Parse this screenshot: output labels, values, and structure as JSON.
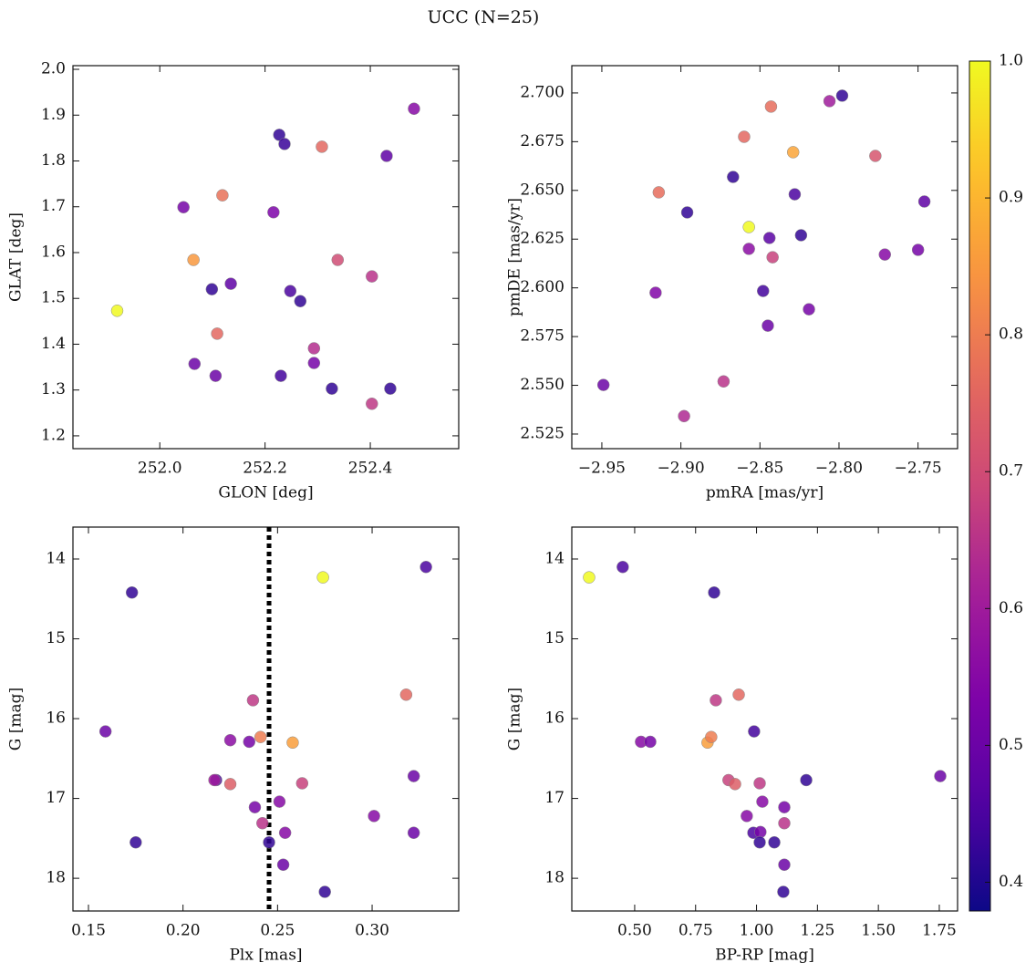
{
  "title": "UCC (N=25)",
  "colorbar": {
    "cmap": "plasma",
    "clim": [
      0.379,
      1.0
    ],
    "ticks": [
      0.4,
      0.5,
      0.6,
      0.7,
      0.8,
      0.9,
      {
        "value": 1.0,
        "label": "1.0"
      }
    ]
  },
  "chart_data": [
    {
      "type": "scatter",
      "xlabel": "GLON [deg]",
      "ylabel": "GLAT [deg]",
      "xlim": [
        251.835,
        252.568
      ],
      "ylim": [
        1.172,
        2.008
      ],
      "xticks": [
        {
          "value": 252.0,
          "label": "252.0"
        },
        {
          "value": 252.2,
          "label": "252.2"
        },
        {
          "value": 252.4,
          "label": "252.4"
        }
      ],
      "yticks": [
        1.2,
        1.3,
        1.4,
        1.5,
        1.6,
        1.7,
        1.8,
        1.9,
        {
          "value": 2.0,
          "label": "2.0"
        }
      ],
      "x": [
        251.919,
        252.045,
        252.119,
        252.064,
        252.099,
        252.135,
        252.109,
        252.066,
        252.106,
        252.227,
        252.237,
        252.216,
        252.248,
        252.267,
        252.23,
        252.308,
        252.338,
        252.293,
        252.293,
        252.327,
        252.403,
        252.403,
        252.431,
        252.438,
        252.483
      ],
      "y": [
        1.473,
        1.699,
        1.725,
        1.584,
        1.52,
        1.532,
        1.423,
        1.357,
        1.331,
        1.857,
        1.837,
        1.688,
        1.516,
        1.494,
        1.331,
        1.831,
        1.584,
        1.391,
        1.359,
        1.303,
        1.548,
        1.27,
        1.811,
        1.303,
        1.914
      ],
      "c": [
        1.0,
        0.52,
        0.78,
        0.85,
        0.42,
        0.48,
        0.76,
        0.5,
        0.5,
        0.42,
        0.43,
        0.53,
        0.45,
        0.42,
        0.44,
        0.76,
        0.7,
        0.64,
        0.52,
        0.42,
        0.65,
        0.66,
        0.48,
        0.42,
        0.55
      ]
    },
    {
      "type": "scatter",
      "xlabel": "pmRA [mas/yr]",
      "ylabel": "pmDE [mas/yr]",
      "xlim": [
        -2.969,
        -2.725
      ],
      "ylim": [
        2.5175,
        2.714
      ],
      "xticks": [
        {
          "value": -2.95,
          "label": "−2.95"
        },
        {
          "value": -2.9,
          "label": "−2.90"
        },
        {
          "value": -2.85,
          "label": "−2.85"
        },
        {
          "value": -2.8,
          "label": "−2.80"
        },
        {
          "value": -2.75,
          "label": "−2.75"
        }
      ],
      "yticks": [
        2.525,
        {
          "value": 2.55,
          "label": "2.550"
        },
        2.575,
        {
          "value": 2.6,
          "label": "2.600"
        },
        2.625,
        {
          "value": 2.65,
          "label": "2.650"
        },
        2.675,
        {
          "value": 2.7,
          "label": "2.700"
        }
      ],
      "x": [
        -2.798,
        -2.806,
        -2.843,
        -2.86,
        -2.829,
        -2.777,
        -2.867,
        -2.914,
        -2.828,
        -2.746,
        -2.896,
        -2.857,
        -2.844,
        -2.824,
        -2.857,
        -2.75,
        -2.771,
        -2.842,
        -2.916,
        -2.848,
        -2.819,
        -2.845,
        -2.949,
        -2.873,
        -2.898
      ],
      "y": [
        2.6986,
        2.6958,
        2.693,
        2.6775,
        2.6696,
        2.6677,
        2.6569,
        2.649,
        2.648,
        2.6443,
        2.6387,
        2.6312,
        2.6256,
        2.627,
        2.62,
        2.6195,
        2.6171,
        2.6157,
        2.5975,
        2.5984,
        2.589,
        2.5806,
        2.5502,
        2.552,
        2.5342
      ],
      "c": [
        0.42,
        0.6,
        0.77,
        0.76,
        0.87,
        0.72,
        0.42,
        0.77,
        0.45,
        0.48,
        0.42,
        1.0,
        0.47,
        0.42,
        0.56,
        0.52,
        0.55,
        0.68,
        0.54,
        0.44,
        0.52,
        0.5,
        0.5,
        0.65,
        0.63
      ]
    },
    {
      "type": "scatter",
      "xlabel": "Plx [mas]",
      "ylabel": "G [mag]",
      "xlim": [
        0.1418,
        0.3458
      ],
      "ylim": [
        18.41,
        13.6
      ],
      "vline": 0.2455,
      "xticks": [
        0.15,
        {
          "value": 0.2,
          "label": "0.20"
        },
        0.25,
        {
          "value": 0.3,
          "label": "0.30"
        }
      ],
      "yticks": [
        14,
        15,
        16,
        17,
        18
      ],
      "x": [
        0.173,
        0.274,
        0.3285,
        0.159,
        0.237,
        0.318,
        0.225,
        0.241,
        0.258,
        0.2175,
        0.2166,
        0.225,
        0.235,
        0.263,
        0.322,
        0.238,
        0.251,
        0.301,
        0.242,
        0.254,
        0.322,
        0.175,
        0.2455,
        0.253,
        0.275
      ],
      "y": [
        14.42,
        14.23,
        14.1,
        16.16,
        15.77,
        15.7,
        16.27,
        16.23,
        16.3,
        16.77,
        16.77,
        16.82,
        16.29,
        16.81,
        16.72,
        17.11,
        17.04,
        17.22,
        17.31,
        17.43,
        17.43,
        17.55,
        17.55,
        17.83,
        18.17
      ],
      "c": [
        0.42,
        1.0,
        0.45,
        0.5,
        0.66,
        0.76,
        0.56,
        0.8,
        0.86,
        0.45,
        0.6,
        0.74,
        0.52,
        0.68,
        0.5,
        0.52,
        0.55,
        0.55,
        0.65,
        0.55,
        0.5,
        0.42,
        0.42,
        0.5,
        0.42
      ]
    },
    {
      "type": "scatter",
      "xlabel": "BP-RP [mag]",
      "ylabel": "G [mag]",
      "xlim": [
        0.242,
        1.825
      ],
      "ylim": [
        18.41,
        13.6
      ],
      "xticks": [
        {
          "value": 0.5,
          "label": "0.50"
        },
        0.75,
        {
          "value": 1.0,
          "label": "1.00"
        },
        1.25,
        {
          "value": 1.5,
          "label": "1.50"
        },
        1.75
      ],
      "yticks": [
        14,
        15,
        16,
        17,
        18
      ],
      "x": [
        0.313,
        0.451,
        0.826,
        0.526,
        0.564,
        0.799,
        0.814,
        0.833,
        0.927,
        0.99,
        0.885,
        0.912,
        1.013,
        1.204,
        1.754,
        1.024,
        1.114,
        0.96,
        1.114,
        0.987,
        1.016,
        1.013,
        1.073,
        1.114,
        1.11
      ],
      "y": [
        14.23,
        14.1,
        14.42,
        16.29,
        16.29,
        16.3,
        16.23,
        15.77,
        15.7,
        16.16,
        16.77,
        16.82,
        16.81,
        16.77,
        16.72,
        17.04,
        17.11,
        17.22,
        17.31,
        17.43,
        17.42,
        17.55,
        17.55,
        17.83,
        18.17
      ],
      "c": [
        1.0,
        0.45,
        0.42,
        0.55,
        0.52,
        0.86,
        0.8,
        0.66,
        0.76,
        0.44,
        0.68,
        0.74,
        0.66,
        0.42,
        0.5,
        0.55,
        0.52,
        0.55,
        0.65,
        0.45,
        0.52,
        0.42,
        0.42,
        0.5,
        0.42
      ]
    }
  ]
}
